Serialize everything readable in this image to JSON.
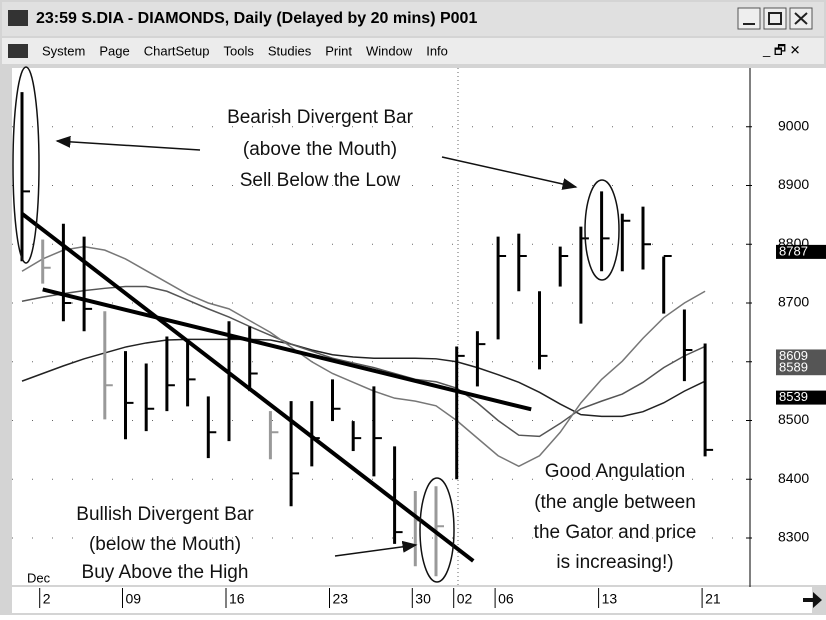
{
  "window": {
    "title": "23:59   S.DIA - DIAMONDS, Daily (Delayed by 20 mins)   P001",
    "menu": [
      "System",
      "Page",
      "ChartSetup",
      "Tools",
      "Studies",
      "Print",
      "Window",
      "Info"
    ]
  },
  "chart_data": {
    "type": "ohlc",
    "categories": [
      null,
      "2",
      null,
      null,
      null,
      "09",
      null,
      null,
      null,
      null,
      "16",
      null,
      null,
      null,
      null,
      "23",
      null,
      null,
      null,
      "30",
      null,
      "02",
      null,
      "06",
      null,
      null,
      null,
      null,
      "13",
      null,
      null,
      null,
      null,
      "21"
    ],
    "month_label": "Dec",
    "high": [
      9059,
      8808,
      8835,
      8813,
      8686,
      8618,
      8597,
      8643,
      8638,
      8541,
      8669,
      8660,
      8516,
      8533,
      8533,
      8570,
      8499,
      8558,
      8456,
      8380,
      8388,
      8626,
      8652,
      8813,
      8818,
      8720,
      8796,
      8830,
      8890,
      8852,
      8864,
      8779,
      8689,
      8631
    ],
    "low": [
      8771,
      8733,
      8669,
      8652,
      8502,
      8468,
      8482,
      8516,
      8524,
      8436,
      8465,
      8550,
      8434,
      8354,
      8422,
      8499,
      8448,
      8405,
      8290,
      8252,
      8235,
      8400,
      8558,
      8638,
      8720,
      8587,
      8728,
      8665,
      8754,
      8754,
      8757,
      8682,
      8567,
      8439
    ],
    "close": [
      8890,
      8760,
      8700,
      8690,
      8560,
      8530,
      8520,
      8560,
      8570,
      8480,
      8640,
      8580,
      8480,
      8410,
      8470,
      8520,
      8470,
      8470,
      8310,
      8330,
      8320,
      8610,
      8630,
      8780,
      8780,
      8610,
      8780,
      8810,
      8810,
      8840,
      8800,
      8780,
      8620,
      8450
    ],
    "bar_colors": [
      "#000",
      "#999",
      "#000",
      "#000",
      "#999",
      "#000",
      "#000",
      "#000",
      "#000",
      "#000",
      "#000",
      "#000",
      "#999",
      "#000",
      "#000",
      "#000",
      "#000",
      "#000",
      "#000",
      "#999",
      "#999",
      "#000",
      "#000",
      "#000",
      "#000",
      "#000",
      "#000",
      "#000",
      "#000",
      "#000",
      "#000",
      "#000",
      "#000",
      "#000"
    ],
    "series": [
      {
        "color": "#222",
        "values": [
          8567,
          8580,
          8593,
          8605,
          8615,
          8625,
          8632,
          8637,
          8638,
          8638,
          8638,
          8638,
          8637,
          8630,
          8620,
          8612,
          8608,
          8606,
          8606,
          8606,
          8605,
          8600,
          8590,
          8578,
          8565,
          8548,
          8528,
          8510,
          8507,
          8507,
          8515,
          8530,
          8550,
          8567
        ]
      },
      {
        "color": "#555",
        "values": [
          8703,
          8710,
          8716,
          8721,
          8725,
          8728,
          8728,
          8720,
          8705,
          8690,
          8676,
          8660,
          8645,
          8630,
          8618,
          8606,
          8598,
          8590,
          8580,
          8570,
          8566,
          8555,
          8530,
          8500,
          8475,
          8473,
          8495,
          8520,
          8533,
          8545,
          8565,
          8590,
          8610,
          8626
        ]
      },
      {
        "color": "#777",
        "values": [
          8754,
          8775,
          8790,
          8796,
          8790,
          8775,
          8755,
          8735,
          8715,
          8700,
          8690,
          8670,
          8650,
          8625,
          8600,
          8580,
          8565,
          8550,
          8538,
          8533,
          8525,
          8500,
          8470,
          8440,
          8422,
          8440,
          8480,
          8530,
          8570,
          8601,
          8640,
          8675,
          8700,
          8720
        ]
      }
    ],
    "trend_lines": [
      {
        "from": [
          0,
          8852
        ],
        "to": [
          21.8,
          8261
        ]
      },
      {
        "from": [
          1,
          8723
        ],
        "to": [
          24.6,
          8519
        ]
      }
    ],
    "ylim": [
      8220,
      9100
    ],
    "yticks": [
      8300,
      8400,
      8500,
      8600,
      8700,
      8800,
      8900,
      9000
    ],
    "price_labels": [
      {
        "value": 8787,
        "color": "#000"
      },
      {
        "value": 8609,
        "color": "#555"
      },
      {
        "value": 8589,
        "color": "#555"
      },
      {
        "value": 8539,
        "color": "#000"
      }
    ],
    "annotations": [
      {
        "lines": [
          "Bearish Divergent Bar",
          "(above the Mouth)",
          "Sell Below the Low"
        ]
      },
      {
        "lines": [
          "Good Angulation",
          "(the angle between",
          "the Gator and price",
          "is increasing!)"
        ]
      },
      {
        "lines": [
          "Bullish Divergent Bar",
          "(below the Mouth)",
          "Buy Above the High"
        ]
      }
    ]
  }
}
